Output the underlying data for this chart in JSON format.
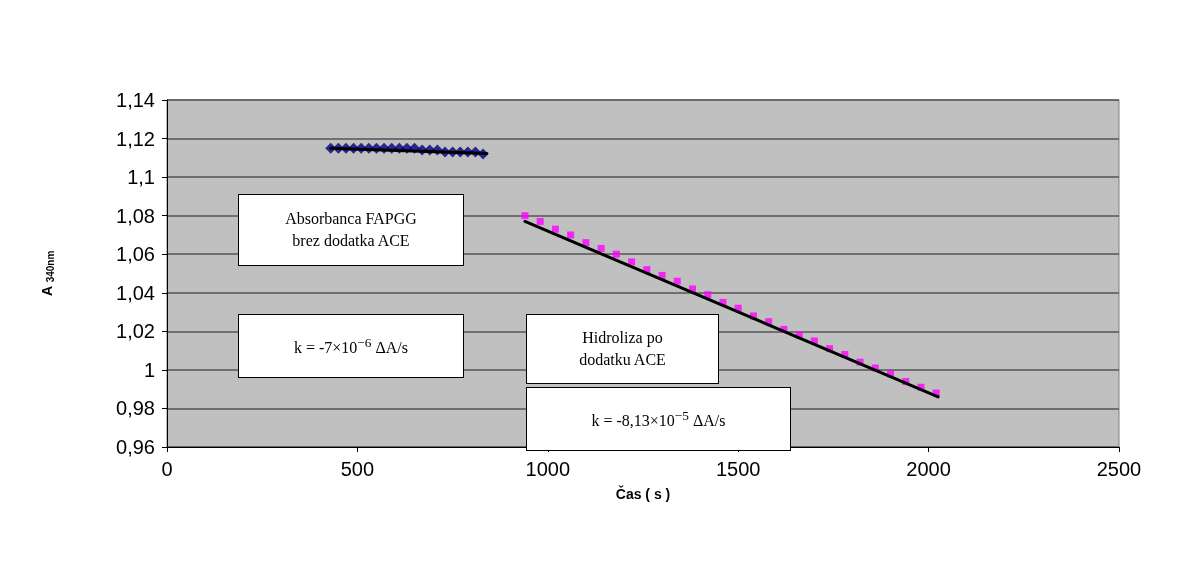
{
  "chart_data": {
    "type": "scatter",
    "xlabel": "Čas ( s )",
    "ylabel": "A $_{340nm}$",
    "xlim": [
      0,
      2500
    ],
    "xticks": [
      0,
      500,
      1000,
      1500,
      2000,
      2500
    ],
    "ylim": [
      0.96,
      1.14
    ],
    "yticks": [
      {
        "value": 0.96,
        "label": "0,96"
      },
      {
        "value": 0.98,
        "label": "0,98"
      },
      1,
      {
        "value": 1.02,
        "label": "1,02"
      },
      {
        "value": 1.04,
        "label": "1,04"
      },
      {
        "value": 1.06,
        "label": "1,06"
      },
      {
        "value": 1.08,
        "label": "1,08"
      },
      {
        "value": 1.1,
        "label": "1,1"
      },
      {
        "value": 1.12,
        "label": "1,12"
      },
      {
        "value": 1.14,
        "label": "1,14"
      }
    ],
    "grid": "y",
    "annotations": [
      "Absorbanca FAPGG\nbrez dodatka ACE",
      "k = -7×10$^{−6}$ ΔA/s",
      "Hidroliza po\ndodatku ACE",
      "k = -8,13×10$^{−5}$ ΔA/s"
    ],
    "series": [
      {
        "color": "#000080",
        "marker": "diamond",
        "x": [
          430,
          450,
          470,
          490,
          510,
          530,
          550,
          570,
          590,
          610,
          630,
          650,
          670,
          690,
          710,
          730,
          750,
          770,
          790,
          810,
          830
        ],
        "values": [
          1.115,
          1.115,
          1.115,
          1.115,
          1.115,
          1.115,
          1.115,
          1.115,
          1.115,
          1.115,
          1.115,
          1.115,
          1.114,
          1.114,
          1.114,
          1.113,
          1.113,
          1.113,
          1.113,
          1.113,
          1.112
        ]
      },
      {
        "type": "line",
        "color": "#000000",
        "marker": "none",
        "x": [
          430,
          840
        ],
        "values": [
          1.115,
          1.1123
        ]
      },
      {
        "color": "#ff00ff",
        "marker": "square",
        "x": [
          940,
          980,
          1020,
          1060,
          1100,
          1140,
          1180,
          1220,
          1260,
          1300,
          1340,
          1380,
          1420,
          1460,
          1500,
          1540,
          1580,
          1620,
          1660,
          1700,
          1740,
          1780,
          1820,
          1860,
          1900,
          1940,
          1980,
          2020
        ],
        "values": [
          1.08,
          1.077,
          1.073,
          1.07,
          1.066,
          1.063,
          1.06,
          1.056,
          1.052,
          1.049,
          1.046,
          1.042,
          1.039,
          1.035,
          1.032,
          1.028,
          1.025,
          1.021,
          1.018,
          1.015,
          1.011,
          1.008,
          1.004,
          1.001,
          0.998,
          0.994,
          0.991,
          0.988
        ]
      },
      {
        "type": "line",
        "color": "#000000",
        "marker": "none",
        "x": [
          940,
          2025
        ],
        "values": [
          1.077,
          0.986
        ]
      }
    ]
  }
}
